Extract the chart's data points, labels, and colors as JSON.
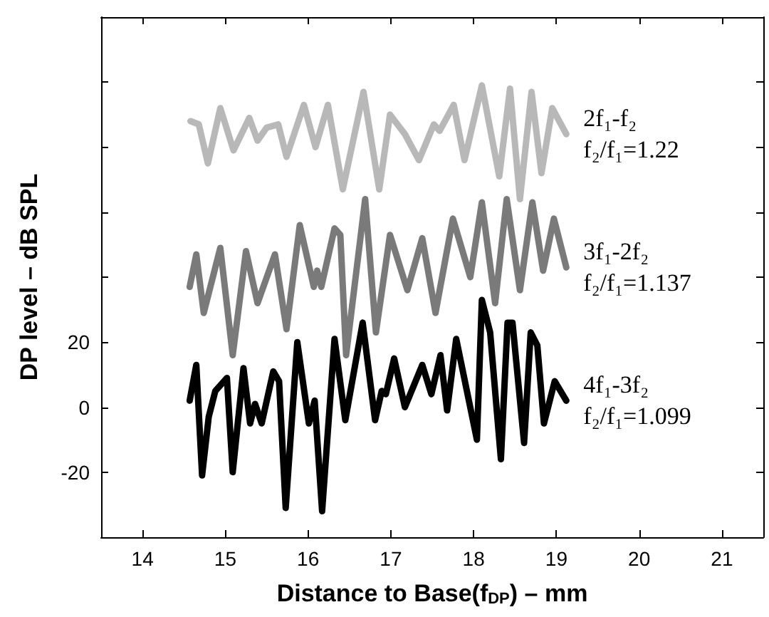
{
  "chart_data": {
    "type": "line",
    "xlabel": "Distance to Base(f$_{DP}$) – mm",
    "ylabel": "DP level – dB SPL",
    "xlim": [
      13.5,
      21.5
    ],
    "xticks": [
      14,
      15,
      16,
      17,
      18,
      19,
      20,
      21
    ],
    "ylim": [
      -40,
      120
    ],
    "yticks": [
      -20,
      0,
      20,
      {
        "value": 40,
        "label": null
      },
      {
        "value": 60,
        "label": null
      },
      {
        "value": 80,
        "label": null
      },
      {
        "value": 100,
        "label": null
      },
      {
        "value": 120,
        "label": null
      }
    ],
    "grid": false,
    "legend": "right",
    "marker": "none",
    "line_style": "solid",
    "series": [
      {
        "name": "2f₁-f₂\nf₂/f₁=1.22",
        "color": "#b8b8b8",
        "x": [
          14.58,
          14.68,
          14.79,
          14.94,
          15.1,
          15.29,
          15.39,
          15.5,
          15.64,
          15.74,
          15.95,
          16.09,
          16.24,
          16.42,
          16.67,
          16.86,
          16.99,
          17.17,
          17.34,
          17.52,
          17.59,
          17.76,
          17.89,
          18.1,
          18.31,
          18.44,
          18.56,
          18.7,
          18.82,
          18.95,
          19.12
        ],
        "values": [
          88,
          87,
          75,
          92,
          79,
          89,
          82,
          86,
          87,
          77,
          93,
          80,
          93,
          67,
          97,
          67,
          90,
          84,
          76,
          87,
          85,
          93,
          76,
          99,
          71,
          98,
          64,
          97,
          72,
          92,
          84
        ]
      },
      {
        "name": "3f₁-2f₂\nf₂/f₁=1.137",
        "color": "#7a7a7a",
        "x": [
          14.57,
          14.65,
          14.74,
          14.94,
          15.09,
          15.25,
          15.39,
          15.6,
          15.74,
          15.9,
          16.07,
          16.11,
          16.16,
          16.32,
          16.39,
          16.46,
          16.69,
          16.82,
          16.99,
          17.2,
          17.38,
          17.54,
          17.75,
          17.96,
          18.1,
          18.26,
          18.4,
          18.56,
          18.71,
          18.84,
          18.97,
          19.12
        ],
        "values": [
          37,
          47,
          29,
          49,
          16,
          48,
          32,
          47,
          24,
          56,
          37,
          42,
          37,
          55,
          53,
          16,
          64,
          23,
          53,
          36,
          52,
          29,
          58,
          40,
          63,
          32,
          64,
          36,
          63,
          42,
          58,
          43
        ]
      },
      {
        "name": "4f₁-3f₂\nf₂/f₁=1.099",
        "color": "#000000",
        "x": [
          14.57,
          14.65,
          14.72,
          14.8,
          14.88,
          15.02,
          15.09,
          15.22,
          15.3,
          15.36,
          15.44,
          15.58,
          15.65,
          15.73,
          15.87,
          16.01,
          16.08,
          16.17,
          16.32,
          16.45,
          16.66,
          16.81,
          16.89,
          16.94,
          17.04,
          17.17,
          17.38,
          17.49,
          17.6,
          17.68,
          17.79,
          18.04,
          18.1,
          18.2,
          18.33,
          18.41,
          18.47,
          18.61,
          18.69,
          18.77,
          18.85,
          18.98,
          19.12
        ],
        "values": [
          2,
          13,
          -21,
          -3,
          5,
          9,
          -20,
          12,
          -5,
          1,
          -5,
          11,
          8,
          -31,
          20,
          -5,
          2,
          -32,
          21,
          -4,
          26,
          -4,
          5,
          4,
          15,
          0,
          13,
          4,
          16,
          -1,
          21,
          -10,
          33,
          23,
          -16,
          26,
          26,
          -11,
          23,
          19,
          -5,
          8,
          2
        ]
      }
    ]
  }
}
